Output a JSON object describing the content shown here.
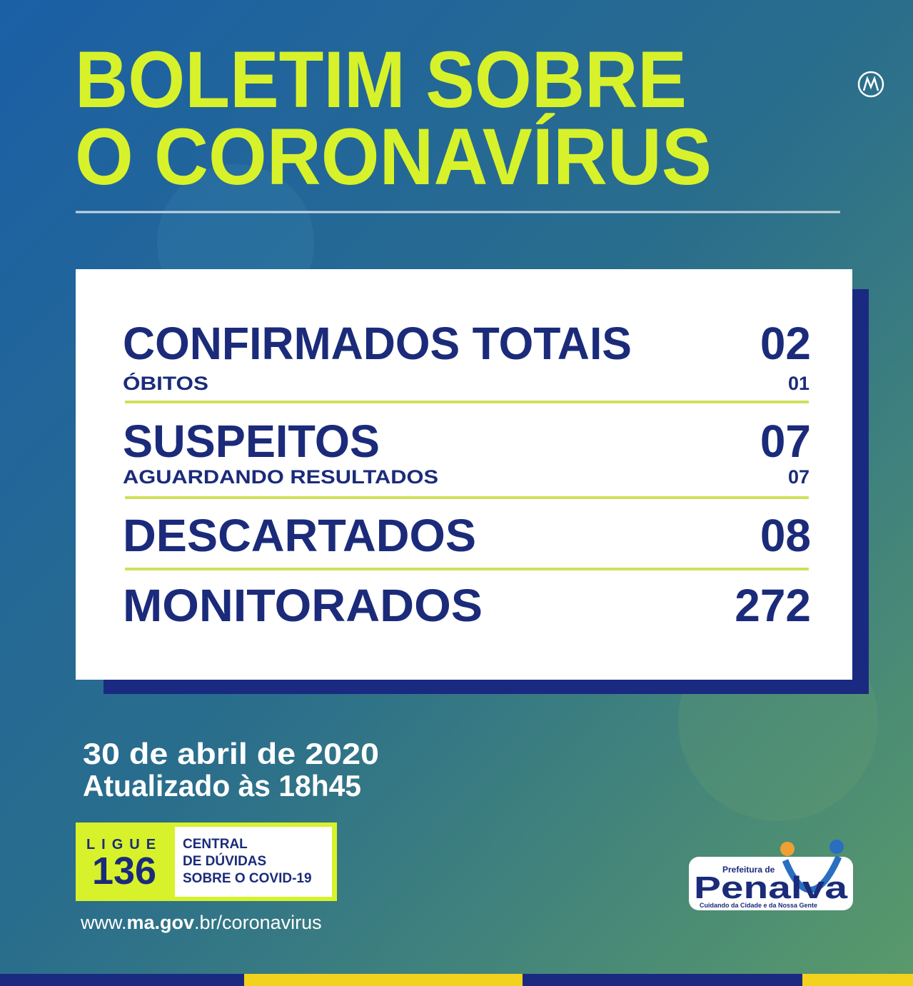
{
  "header": {
    "title_lines": [
      "BOLETIM SOBRE",
      "O CORONAVÍRUS"
    ]
  },
  "stats": [
    {
      "label": "CONFIRMADOS TOTAIS",
      "value": "02",
      "sub_label": "ÓBITOS",
      "sub_value": "01"
    },
    {
      "label": "SUSPEITOS",
      "value": "07",
      "sub_label": "AGUARDANDO RESULTADOS",
      "sub_value": "07"
    },
    {
      "label": "DESCARTADOS",
      "value": "08"
    },
    {
      "label": "MONITORADOS",
      "value": "272"
    }
  ],
  "date": "30 de abril de 2020",
  "updated": "Atualizado às 18h45",
  "hotline": {
    "prompt": "LIGUE",
    "number": "136",
    "text_lines": [
      "CENTRAL",
      "DE DÚVIDAS",
      "SOBRE O COVID-19"
    ]
  },
  "website": {
    "prefix": "www.",
    "domain": "ma.gov",
    "suffix": ".br/coronavirus"
  },
  "logo": {
    "top": "Prefeitura de",
    "name": "Penalva",
    "tagline": "Cuidando da Cidade e da Nossa Gente"
  }
}
